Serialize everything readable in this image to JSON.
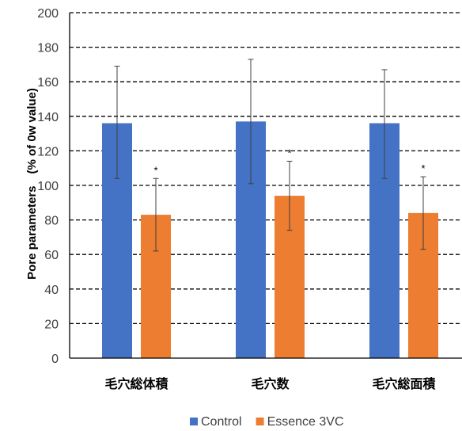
{
  "chart_data": {
    "type": "bar",
    "title": "",
    "xlabel": "",
    "ylabel": "Pore parameters　(% of 0w value)",
    "ylim": [
      0,
      200
    ],
    "yticks": [
      0,
      20,
      40,
      60,
      80,
      100,
      120,
      140,
      160,
      180,
      200
    ],
    "grid": "dashed horizontal",
    "legend_position": "bottom",
    "categories": [
      "毛穴総体積",
      "毛穴数",
      "毛穴総面積"
    ],
    "series": [
      {
        "name": "Control",
        "color": "#4472C4",
        "values": [
          136,
          137,
          136
        ],
        "error_low": [
          104,
          101,
          104
        ],
        "error_high": [
          169,
          173,
          167
        ],
        "annotations": [
          "",
          "",
          ""
        ]
      },
      {
        "name": "Essence 3VC",
        "color": "#ED7D31",
        "values": [
          83,
          94,
          84
        ],
        "error_low": [
          62,
          74,
          63
        ],
        "error_high": [
          104,
          114,
          105
        ],
        "annotations": [
          "*",
          "*",
          "*"
        ]
      }
    ]
  }
}
